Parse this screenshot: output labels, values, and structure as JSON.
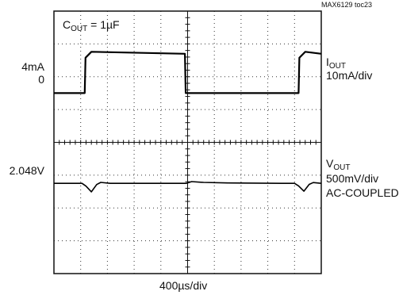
{
  "chart_data": {
    "type": "line",
    "figure_id": "MAX6129 toc23",
    "annotation_main": "C",
    "annotation_sub": "OUT",
    "annotation_value": " = 1µF",
    "x_scale_label": "400µs/div",
    "grid": true,
    "divisions": {
      "x": 10,
      "y": 8
    },
    "channels": [
      {
        "name_main": "I",
        "name_sub": "OUT",
        "scale": "10mA/div",
        "coupling": "",
        "level_label_high": "4mA",
        "level_label_low": "0",
        "levels_mA": {
          "low": 0,
          "high": 4
        },
        "series": [
          {
            "t_div": 0.0,
            "value_mA": 0
          },
          {
            "t_div": 1.15,
            "value_mA": 0
          },
          {
            "t_div": 1.18,
            "value_mA": 3.6
          },
          {
            "t_div": 1.4,
            "value_mA": 4.2
          },
          {
            "t_div": 4.9,
            "value_mA": 4.0
          },
          {
            "t_div": 4.93,
            "value_mA": 0
          },
          {
            "t_div": 9.15,
            "value_mA": 0
          },
          {
            "t_div": 9.18,
            "value_mA": 3.6
          },
          {
            "t_div": 9.4,
            "value_mA": 4.2
          },
          {
            "t_div": 10.0,
            "value_mA": 4.0
          }
        ]
      },
      {
        "name_main": "V",
        "name_sub": "OUT",
        "scale": "500mV/div",
        "coupling": "AC-COUPLED",
        "level_label": "2.048V",
        "series": [
          {
            "t_div": 0.0,
            "deviation_mV": 0
          },
          {
            "t_div": 1.05,
            "deviation_mV": 0
          },
          {
            "t_div": 1.2,
            "deviation_mV": -140
          },
          {
            "t_div": 1.4,
            "deviation_mV": -430
          },
          {
            "t_div": 1.6,
            "deviation_mV": -60
          },
          {
            "t_div": 1.75,
            "deviation_mV": 50
          },
          {
            "t_div": 2.1,
            "deviation_mV": 0
          },
          {
            "t_div": 4.95,
            "deviation_mV": 0
          },
          {
            "t_div": 5.15,
            "deviation_mV": 90
          },
          {
            "t_div": 5.6,
            "deviation_mV": 50
          },
          {
            "t_div": 6.5,
            "deviation_mV": 20
          },
          {
            "t_div": 8.5,
            "deviation_mV": 0
          },
          {
            "t_div": 9.0,
            "deviation_mV": 0
          },
          {
            "t_div": 9.15,
            "deviation_mV": -130
          },
          {
            "t_div": 9.35,
            "deviation_mV": -400
          },
          {
            "t_div": 9.55,
            "deviation_mV": -50
          },
          {
            "t_div": 9.7,
            "deviation_mV": 40
          },
          {
            "t_div": 10.0,
            "deviation_mV": 0
          }
        ]
      }
    ]
  }
}
